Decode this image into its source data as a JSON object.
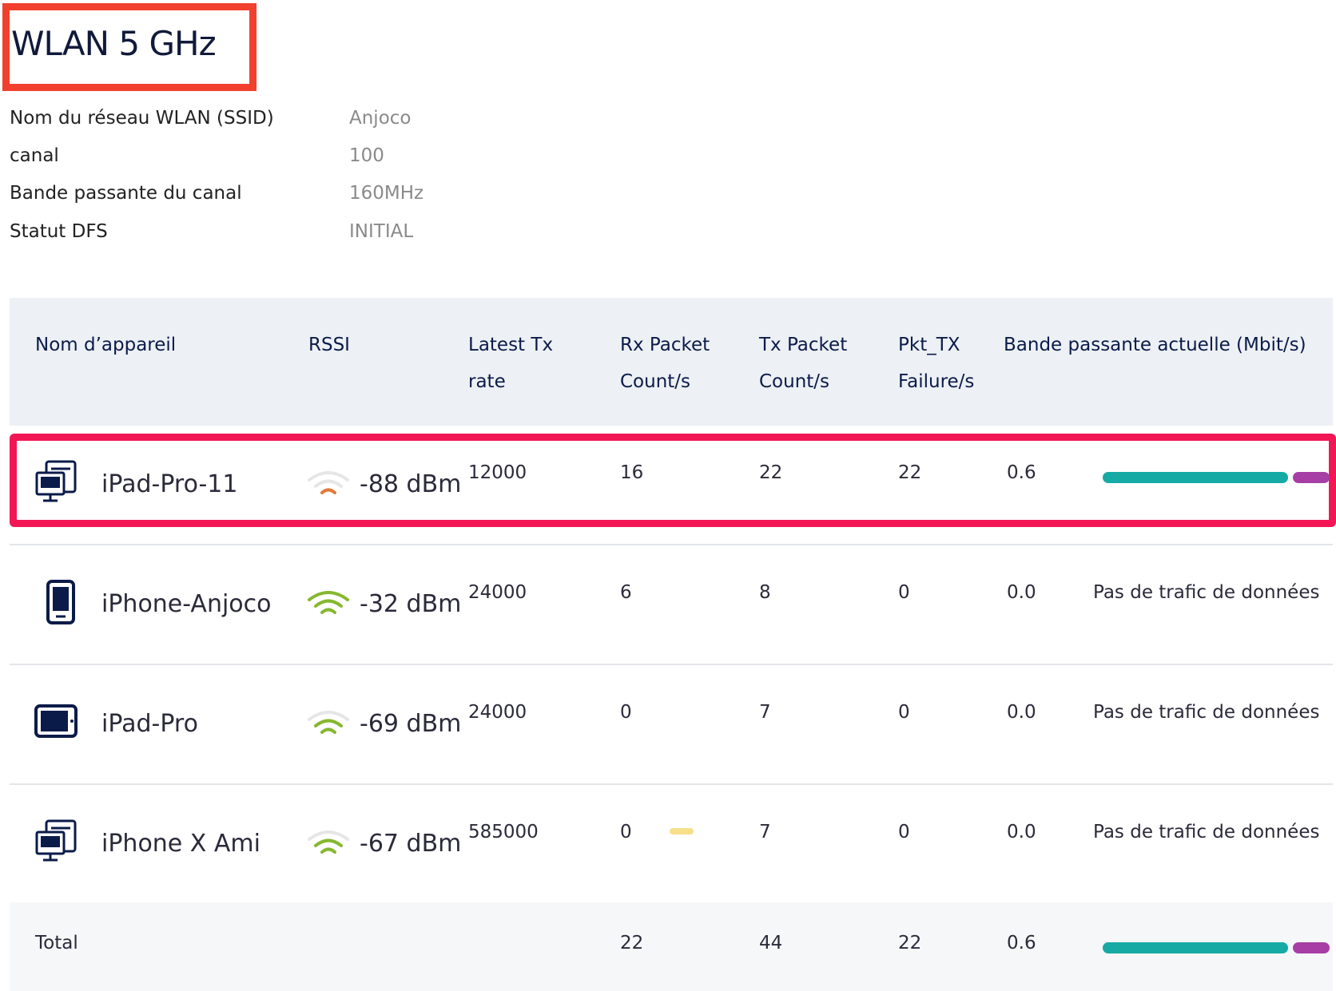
{
  "title": "WLAN 5 GHz",
  "info": [
    {
      "label": "Nom du réseau WLAN (SSID)",
      "value": "Anjoco"
    },
    {
      "label": "canal",
      "value": "100"
    },
    {
      "label": "Bande passante du canal",
      "value": "160MHz"
    },
    {
      "label": "Statut DFS",
      "value": "INITIAL"
    }
  ],
  "table": {
    "headers": {
      "device": "Nom d’appareil",
      "rssi": "RSSI",
      "txrate_1": "Latest Tx",
      "txrate_2": "rate",
      "rx_1": "Rx Packet",
      "rx_2": "Count/s",
      "tx_1": "Tx Packet",
      "tx_2": "Count/s",
      "fail_1": "Pkt_TX",
      "fail_2": "Failure/s",
      "bw": "Bande passante actuelle (Mbit/s)"
    },
    "rows": [
      {
        "icon": "desktop-computer-icon",
        "name": "iPad-Pro-11",
        "signal_icon": "wifi-weak-icon",
        "signal_level": 1,
        "signal_color": "#e07a3a",
        "rssi": "-88 dBm",
        "tx_rate": "12000",
        "rx": "16",
        "tx": "22",
        "fail": "22",
        "bw": "0.6",
        "bar_fraction": 0.82,
        "no_data": ""
      },
      {
        "icon": "smartphone-icon",
        "name": "iPhone-Anjoco",
        "signal_icon": "wifi-strong-icon",
        "signal_level": 3,
        "signal_color": "#86b830",
        "rssi": "-32 dBm",
        "tx_rate": "24000",
        "rx": "6",
        "tx": "8",
        "fail": "0",
        "bw": "0.0",
        "bar_fraction": 0,
        "no_data": "Pas de trafic de données"
      },
      {
        "icon": "tablet-icon",
        "name": "iPad-Pro",
        "signal_icon": "wifi-medium-icon",
        "signal_level": 2,
        "signal_color": "#86b830",
        "rssi": "-69 dBm",
        "tx_rate": "24000",
        "rx": "0",
        "tx": "7",
        "fail": "0",
        "bw": "0.0",
        "bar_fraction": 0,
        "no_data": "Pas de trafic de données"
      },
      {
        "icon": "desktop-computer-icon",
        "name": "iPhone X Ami",
        "signal_icon": "wifi-medium-icon",
        "signal_level": 2,
        "signal_color": "#86b830",
        "rssi": "-67 dBm",
        "tx_rate": "585000",
        "rx": "0",
        "tx": "7",
        "fail": "0",
        "bw": "0.0",
        "bar_fraction": 0,
        "no_data": "Pas de trafic de données"
      }
    ],
    "total": {
      "label": "Total",
      "rx": "22",
      "tx": "44",
      "fail": "22",
      "bw": "0.6",
      "bar_fraction": 0.82
    }
  },
  "colors": {
    "bar_primary": "#16aaa5",
    "bar_secondary": "#a63ea5",
    "highlight_title": "#f2402f",
    "highlight_row": "#f21655"
  }
}
